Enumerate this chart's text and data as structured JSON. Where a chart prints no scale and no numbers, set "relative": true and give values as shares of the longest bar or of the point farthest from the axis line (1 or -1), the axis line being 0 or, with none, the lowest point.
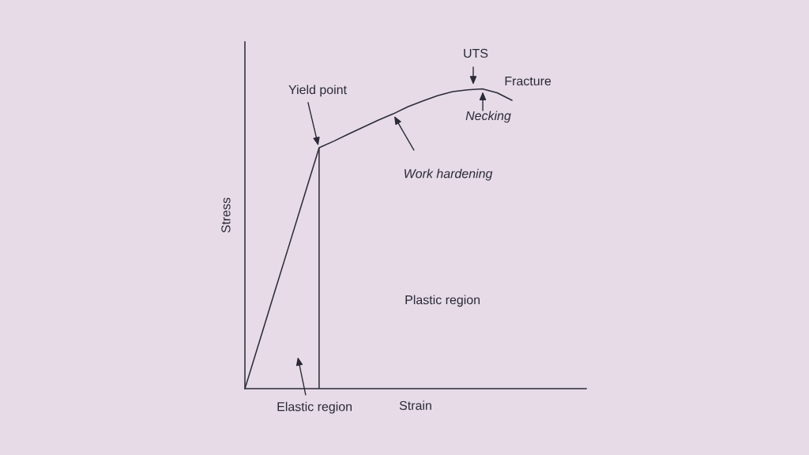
{
  "chart_data": {
    "type": "line",
    "relative": true,
    "xlabel": "Strain",
    "ylabel": "Stress",
    "categories": [
      null,
      null,
      null,
      null,
      null,
      null,
      null,
      null,
      null,
      null,
      null,
      null,
      null,
      null,
      null,
      null,
      null,
      null,
      null,
      null,
      null,
      null,
      null,
      null
    ],
    "series": [
      {
        "color": "#2b2b38",
        "values": [
          0,
          0.161,
          0.322,
          0.482,
          0.643,
          0.804,
          0.826,
          0.85,
          0.873,
          0.896,
          0.917,
          0.941,
          0.96,
          0.978,
          0.991,
          0.997,
          1,
          0.987,
          0.962,
          null,
          null,
          null,
          null,
          null
        ]
      }
    ],
    "annotations": [
      "Yield point",
      "UTS",
      "Fracture",
      "Necking",
      "Work hardening",
      "Plastic region",
      "Elastic region"
    ]
  }
}
